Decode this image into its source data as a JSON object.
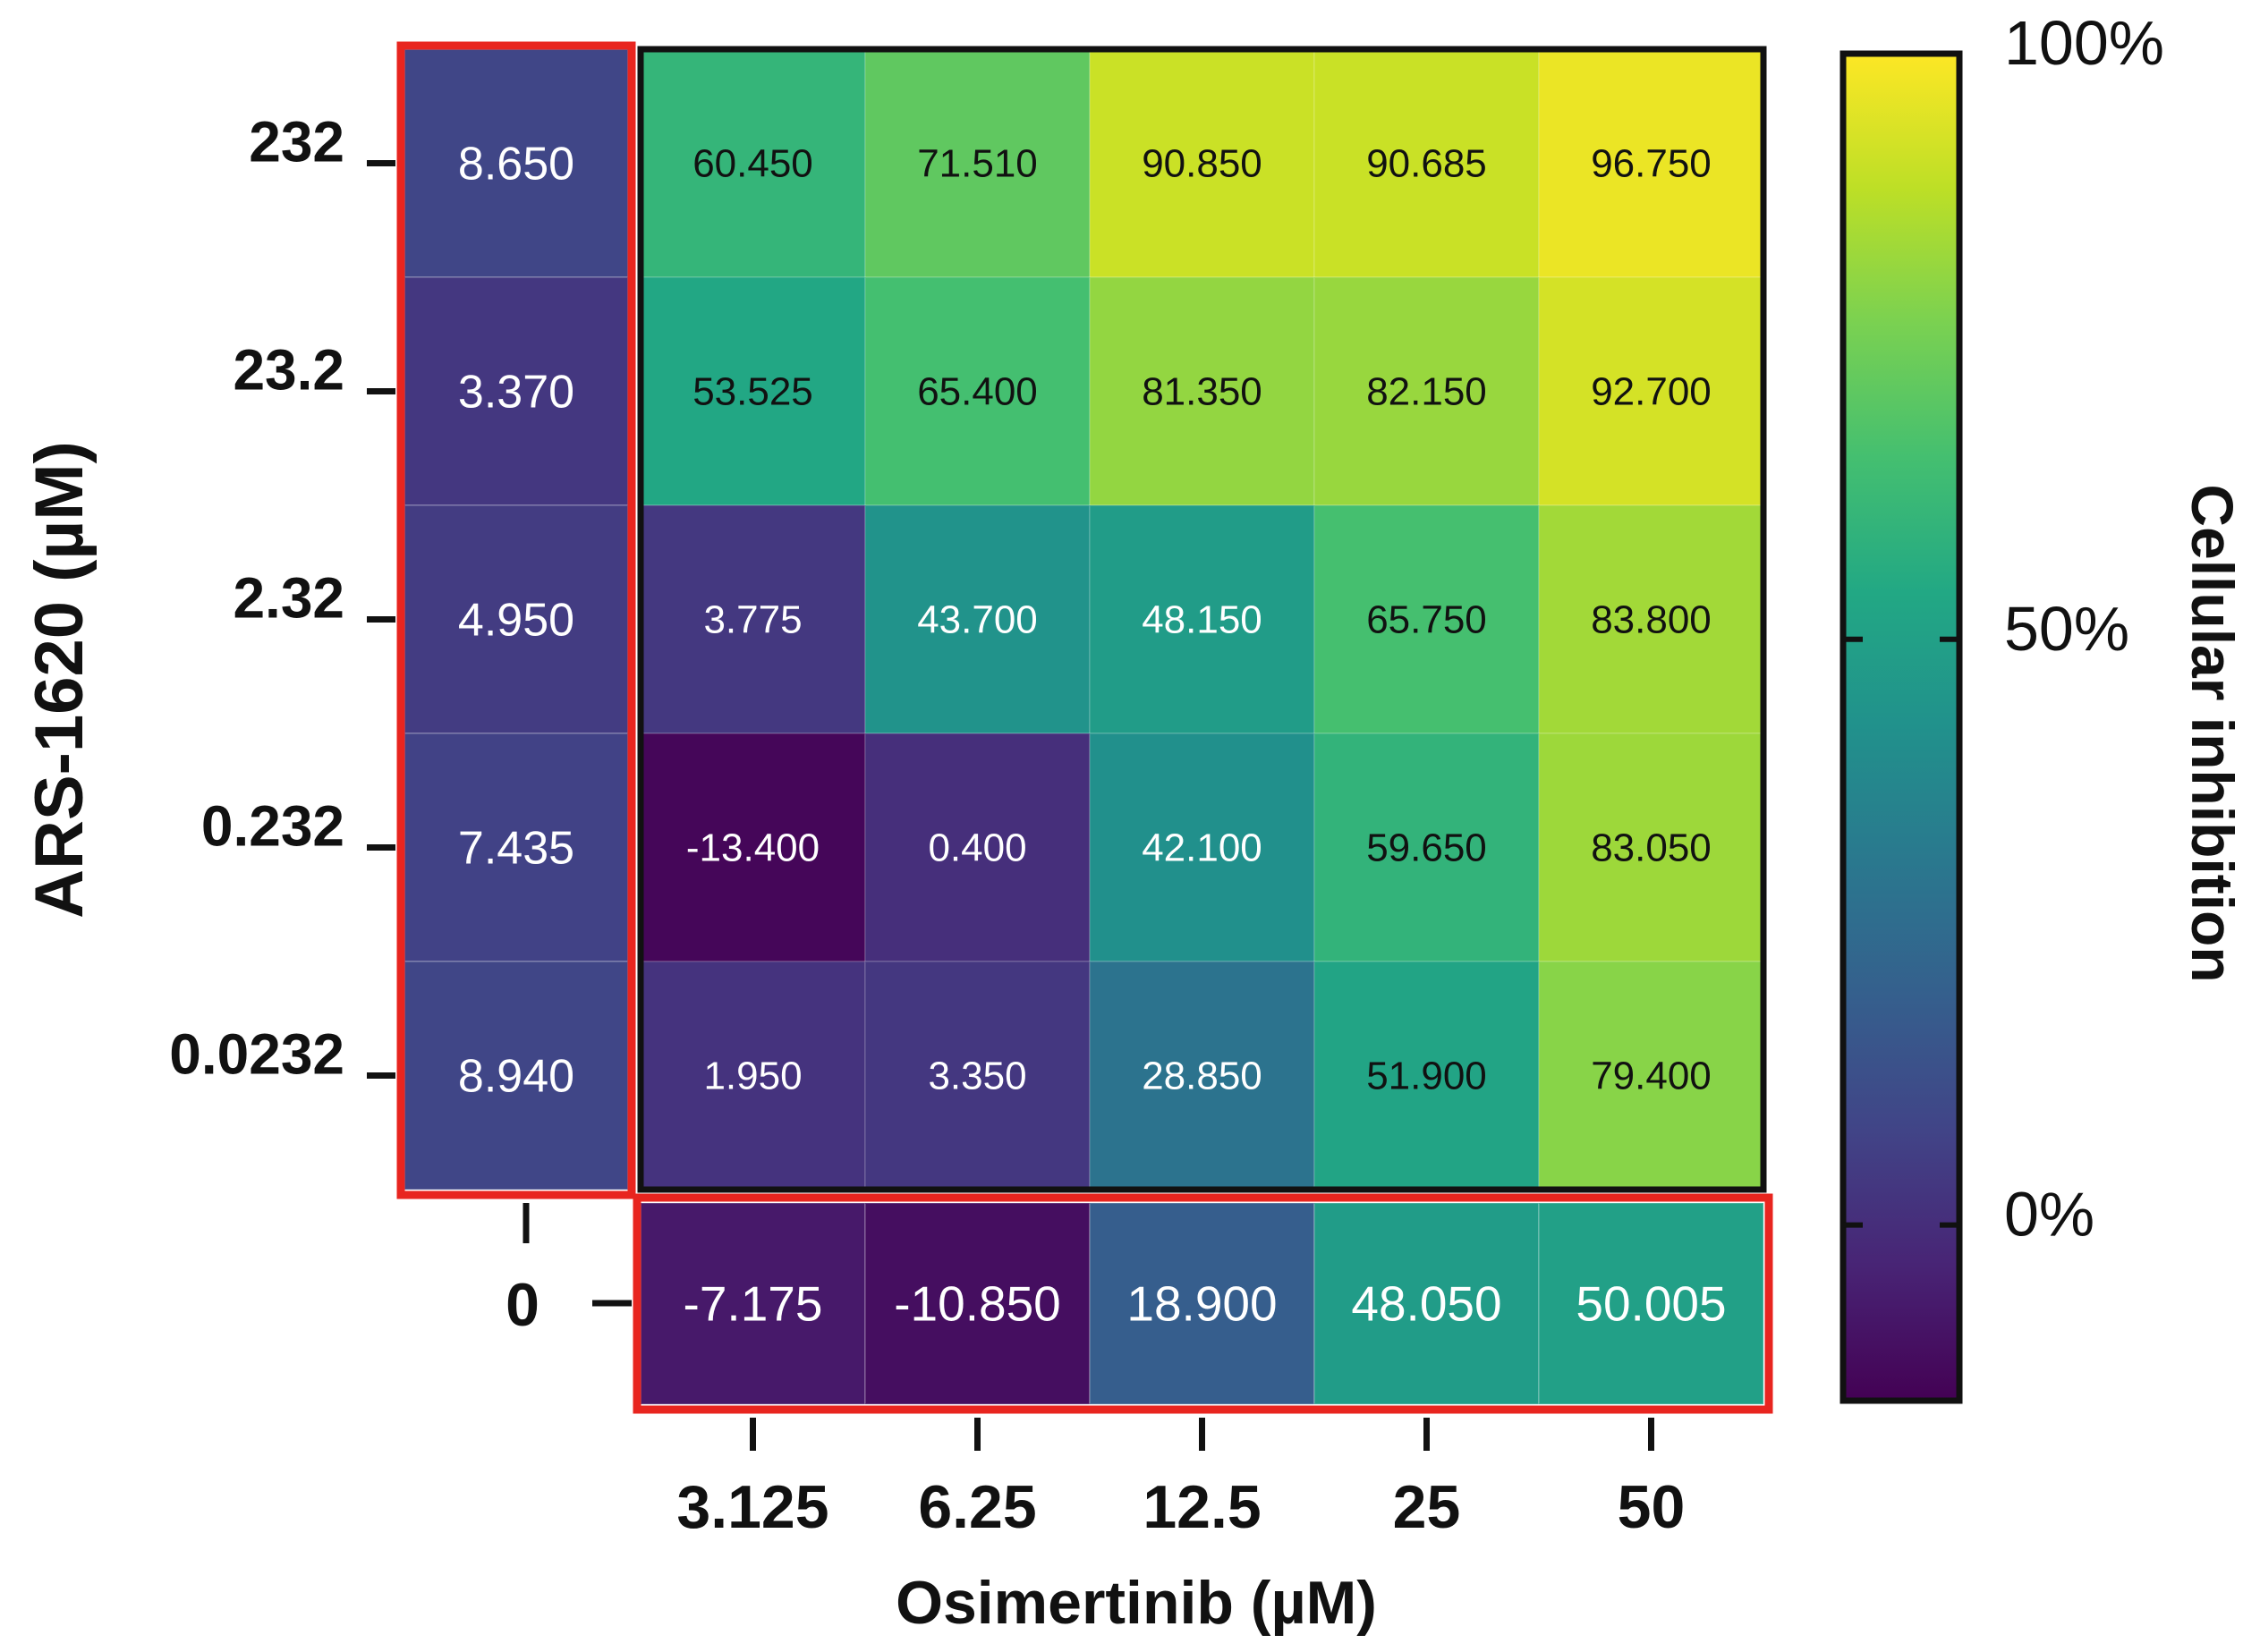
{
  "chart_data": {
    "type": "heatmap",
    "xlabel": "Osimertinib (µM)",
    "ylabel": "ARS-1620  (µM)",
    "x_ticks": [
      "3.125",
      "6.25",
      "12.5",
      "25",
      "50"
    ],
    "y_ticks": [
      "232",
      "23.2",
      "2.32",
      "0.232",
      "0.0232"
    ],
    "zero_label": "0",
    "colorbar": {
      "title": "Cellular inhibition",
      "range": [
        -15,
        100
      ],
      "ticks": [
        {
          "value": 100,
          "label": "100%"
        },
        {
          "value": 50,
          "label": "50%"
        },
        {
          "value": 0,
          "label": "0%"
        }
      ],
      "colormap": "viridis"
    },
    "main_grid": {
      "rows": [
        "232",
        "23.2",
        "2.32",
        "0.232",
        "0.0232"
      ],
      "columns": [
        "3.125",
        "6.25",
        "12.5",
        "25",
        "50"
      ],
      "values": [
        [
          "60.450",
          "71.510",
          "90.850",
          "90.685",
          "96.750"
        ],
        [
          "53.525",
          "65.400",
          "81.350",
          "82.150",
          "92.700"
        ],
        [
          "3.775",
          "43.700",
          "48.150",
          "65.750",
          "83.800"
        ],
        [
          "-13.400",
          "0.400",
          "42.100",
          "59.650",
          "83.050"
        ],
        [
          "1.950",
          "3.350",
          "28.850",
          "51.900",
          "79.400"
        ]
      ]
    },
    "ars1620_alone": {
      "description_rows": [
        "232",
        "23.2",
        "2.32",
        "0.232",
        "0.0232"
      ],
      "values": [
        "8.650",
        "3.370",
        "4.950",
        "7.435",
        "8.940"
      ]
    },
    "osimertinib_alone": {
      "columns": [
        "3.125",
        "6.25",
        "12.5",
        "25",
        "50"
      ],
      "values": [
        "-7.175",
        "-10.850",
        "18.900",
        "48.050",
        "50.005"
      ]
    },
    "highlight_color": "#e8251f",
    "frame_color": "#111111"
  }
}
